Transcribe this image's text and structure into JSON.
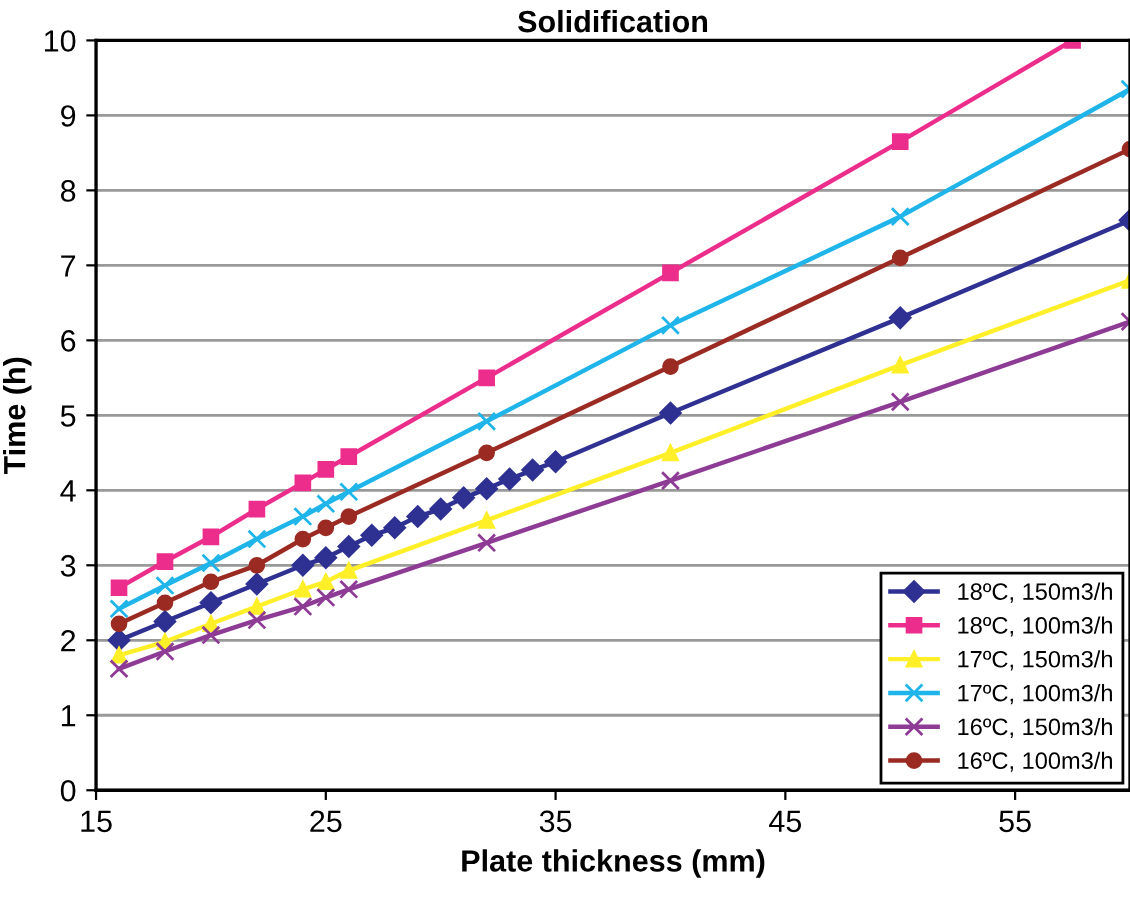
{
  "chart_data": {
    "type": "line",
    "title": "Solidification",
    "xlabel": "Plate thickness (mm)",
    "ylabel": "Time (h)",
    "xlim": [
      15,
      60
    ],
    "xticks": [
      15,
      25,
      35,
      45,
      55
    ],
    "ylim": [
      0,
      10
    ],
    "yticks": [
      0,
      1,
      2,
      3,
      4,
      5,
      6,
      7,
      8,
      9,
      10
    ],
    "grid": "y",
    "legend": "bottom right",
    "line_style": "solid",
    "series": [
      {
        "name": "18ºC, 150m3/h",
        "color": "#2e3192",
        "marker": "diamond",
        "x": [
          16,
          18,
          20,
          22,
          24,
          25,
          26,
          27,
          28,
          29,
          30,
          31,
          32,
          33,
          34,
          35,
          40,
          50,
          60
        ],
        "values": [
          2.0,
          2.25,
          2.5,
          2.75,
          3.0,
          3.1,
          3.25,
          3.4,
          3.5,
          3.65,
          3.75,
          3.9,
          4.02,
          4.15,
          4.27,
          4.38,
          5.03,
          6.3,
          7.6
        ]
      },
      {
        "name": "18ºC, 100m3/h",
        "color": "#ec2d8c",
        "marker": "square",
        "x": [
          16,
          18,
          20,
          22,
          24,
          25,
          26,
          32,
          40,
          50,
          57.5
        ],
        "values": [
          2.7,
          3.05,
          3.38,
          3.75,
          4.1,
          4.28,
          4.45,
          5.5,
          6.9,
          8.65,
          10.0
        ]
      },
      {
        "name": "17ºC, 150m3/h",
        "color": "#ffef28",
        "marker": "triangle",
        "x": [
          16,
          18,
          20,
          22,
          24,
          25,
          26,
          32,
          40,
          50,
          60
        ],
        "values": [
          1.8,
          1.98,
          2.22,
          2.45,
          2.68,
          2.78,
          2.93,
          3.6,
          4.5,
          5.67,
          6.8
        ]
      },
      {
        "name": "17ºC, 100m3/h",
        "color": "#1fb5ea",
        "marker": "cross",
        "x": [
          16,
          18,
          20,
          22,
          24,
          25,
          26,
          32,
          40,
          50,
          60
        ],
        "values": [
          2.42,
          2.73,
          3.03,
          3.35,
          3.65,
          3.82,
          3.98,
          4.92,
          6.2,
          7.65,
          9.35
        ]
      },
      {
        "name": "16ºC, 150m3/h",
        "color": "#8e3b96",
        "marker": "cross",
        "x": [
          16,
          18,
          20,
          22,
          24,
          25,
          26,
          32,
          40,
          50,
          60
        ],
        "values": [
          1.62,
          1.85,
          2.07,
          2.27,
          2.45,
          2.57,
          2.68,
          3.3,
          4.13,
          5.18,
          6.25
        ]
      },
      {
        "name": "16ºC, 100m3/h",
        "color": "#9a2a22",
        "marker": "circle",
        "x": [
          16,
          18,
          20,
          22,
          24,
          25,
          26,
          32,
          40,
          50,
          60
        ],
        "values": [
          2.22,
          2.5,
          2.78,
          3.0,
          3.35,
          3.5,
          3.65,
          4.5,
          5.65,
          7.1,
          8.55
        ]
      }
    ]
  }
}
